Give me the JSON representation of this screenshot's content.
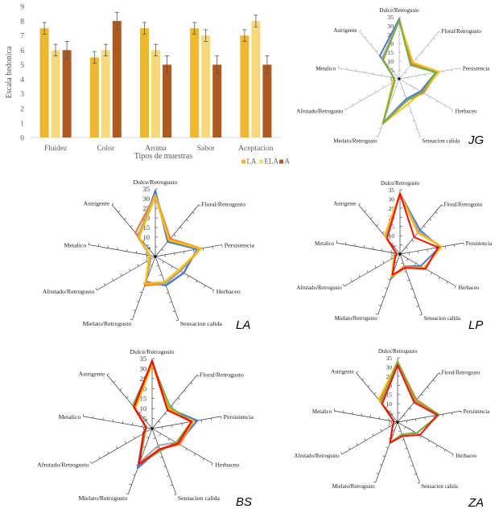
{
  "chart_data": [
    {
      "type": "bar",
      "title": "",
      "xlabel": "Tipos de muestras",
      "ylabel": "Escala hedonica",
      "ylim": [
        0,
        9
      ],
      "yticks": [
        "0",
        "1",
        "2",
        "3",
        "4",
        "5",
        "6",
        "7",
        "8",
        "9"
      ],
      "grid": false,
      "legend": "bottom-right",
      "categories": [
        "Fluidez",
        "Color",
        "Aroma",
        "Sabor",
        "Aceptacion"
      ],
      "series": [
        {
          "name": "LA",
          "color": "#EDB82F",
          "values": [
            7.5,
            5.5,
            7.5,
            7.5,
            7.0
          ],
          "error": [
            0.4,
            0.4,
            0.4,
            0.4,
            0.4
          ]
        },
        {
          "name": "ELA",
          "color": "#F6D97C",
          "values": [
            6.0,
            6.0,
            6.0,
            7.0,
            8.0
          ],
          "error": [
            0.4,
            0.4,
            0.4,
            0.4,
            0.4
          ]
        },
        {
          "name": "A",
          "color": "#AD5A22",
          "values": [
            6.0,
            8.0,
            5.0,
            5.0,
            5.0
          ],
          "error": [
            0.6,
            0.6,
            0.6,
            0.6,
            0.6
          ]
        }
      ]
    },
    {
      "type": "radar",
      "panel_label": "JG",
      "axes": [
        "Dulce/Retrogusto",
        "Floral/Retrogusto",
        "Persistencia",
        "Herbaceo",
        "Sensacion calida",
        "Mielato/Retrogusto",
        "Afrutado/Retrogusto",
        "Metalico",
        "Astrigente"
      ],
      "rlim": [
        0,
        35
      ],
      "rticks": [
        "0",
        "5",
        "10",
        "15",
        "20",
        "25",
        "30",
        "35"
      ],
      "series": [
        {
          "color": "#4472C4",
          "values": [
            34,
            11,
            21,
            14,
            12,
            26,
            4,
            3,
            17
          ]
        },
        {
          "color": "#ED7D31",
          "values": [
            33,
            11,
            22,
            16,
            13,
            26,
            4,
            3,
            15
          ]
        },
        {
          "color": "#A5A5A5",
          "values": [
            33,
            12,
            22,
            15,
            13,
            26,
            4,
            3,
            15
          ]
        },
        {
          "color": "#FFC000",
          "values": [
            33,
            12,
            23,
            15,
            15,
            27,
            4,
            3,
            14
          ]
        },
        {
          "color": "#70AD47",
          "values": [
            33,
            10,
            21,
            15,
            13,
            27,
            3,
            3,
            14
          ]
        }
      ]
    },
    {
      "type": "radar",
      "panel_label": "LA",
      "axes": [
        "Dulce/Retrogusto",
        "Floral/Retrogusto",
        "Persistencia",
        "Herbaceo",
        "Sensacion calida",
        "Mielato/Retrogusto",
        "Afrutado/Retrogusto",
        "Metalico",
        "Astrigente"
      ],
      "rlim": [
        0,
        35
      ],
      "rticks": [
        "0",
        "5",
        "10",
        "15",
        "20",
        "25",
        "30",
        "35"
      ],
      "series": [
        {
          "color": "#4472C4",
          "values": [
            34,
            10,
            22,
            17,
            16,
            14,
            3,
            3,
            13
          ]
        },
        {
          "color": "#ED7D31",
          "values": [
            32,
            12,
            24,
            15,
            15,
            16,
            3,
            3,
            16
          ]
        },
        {
          "color": "#A5A5A5",
          "values": [
            32,
            11,
            23,
            15,
            15,
            15,
            3,
            3,
            14
          ]
        },
        {
          "color": "#FFC000",
          "values": [
            31,
            11,
            24,
            14,
            14,
            15,
            4,
            3,
            13
          ]
        }
      ]
    },
    {
      "type": "radar",
      "panel_label": "LP",
      "axes": [
        "Dulce/Retrogusto",
        "Floral/Retrogusto",
        "Persistencia",
        "Herbaceo",
        "Sensacion calida",
        "Mielato/Retrogusto",
        "Afrutado/Retrogusto",
        "Metalico",
        "Astrigente"
      ],
      "rlim": [
        0,
        35
      ],
      "rticks": [
        "0",
        "5",
        "10",
        "15",
        "20",
        "25",
        "30",
        "35"
      ],
      "series": [
        {
          "color": "#4472C4",
          "values": [
            33,
            17,
            22,
            13,
            7,
            14,
            3,
            2,
            12
          ]
        },
        {
          "color": "#A5A5A5",
          "values": [
            33,
            16,
            23,
            15,
            7,
            13,
            3,
            2,
            12
          ]
        },
        {
          "color": "#ED7D31",
          "values": [
            33,
            15,
            23,
            15,
            7,
            13,
            3,
            2,
            13
          ]
        },
        {
          "color": "#FFC000",
          "values": [
            33,
            15,
            23,
            15,
            8,
            13,
            4,
            2,
            13
          ]
        },
        {
          "color": "#FF0000",
          "values": [
            33,
            12,
            21,
            16,
            8,
            12,
            3,
            2,
            11
          ]
        }
      ]
    },
    {
      "type": "radar",
      "panel_label": "BS",
      "axes": [
        "Dulce/Retrogusto",
        "Floral/Retrogusto",
        "Persistencia",
        "Herbaceo",
        "Sensacion calida",
        "Mielato/Retrogusto",
        "Afrutado/Retrogusto",
        "Metalico",
        "Astrigente"
      ],
      "rlim": [
        0,
        35
      ],
      "rticks": [
        "0",
        "5",
        "10",
        "15",
        "20",
        "25",
        "30",
        "35"
      ],
      "series": [
        {
          "color": "#4472C4",
          "values": [
            33,
            13,
            23,
            15,
            11,
            21,
            5,
            3,
            14
          ]
        },
        {
          "color": "#A5A5A5",
          "values": [
            33,
            13,
            21,
            14,
            9,
            18,
            5,
            3,
            14
          ]
        },
        {
          "color": "#ED7D31",
          "values": [
            33,
            12,
            21,
            16,
            11,
            19,
            5,
            3,
            14
          ]
        },
        {
          "color": "#FFC000",
          "values": [
            32,
            13,
            21,
            15,
            11,
            19,
            5,
            3,
            13
          ]
        },
        {
          "color": "#70AD47",
          "values": [
            33,
            14,
            20,
            14,
            12,
            19,
            4,
            3,
            15
          ]
        },
        {
          "color": "#FF0000",
          "values": [
            34,
            12,
            20,
            15,
            11,
            19,
            5,
            3,
            14
          ]
        }
      ]
    },
    {
      "type": "radar",
      "panel_label": "ZA",
      "axes": [
        "Dulce/Retrogusto",
        "Floral/Retrogusto",
        "Persistencia",
        "Herbaceo",
        "Sensacion calida",
        "Mielato/Retrogusto",
        "Afrutado/Retrogusto",
        "Metalico",
        "Astrigente"
      ],
      "rlim": [
        0,
        35
      ],
      "rticks": [
        "0",
        "5",
        "10",
        "15",
        "20",
        "25",
        "30",
        "35"
      ],
      "series": [
        {
          "color": "#ED7D31",
          "values": [
            33,
            16,
            23,
            12,
            7,
            12,
            3,
            2,
            15
          ]
        },
        {
          "color": "#FFC000",
          "values": [
            33,
            15,
            23,
            12,
            7,
            12,
            3,
            2,
            16
          ]
        },
        {
          "color": "#70AD47",
          "values": [
            33,
            15,
            23,
            12,
            7,
            12,
            3,
            2,
            14
          ]
        },
        {
          "color": "#FF0000",
          "values": [
            31,
            14,
            22,
            14,
            8,
            12,
            3,
            2,
            13
          ]
        }
      ]
    }
  ]
}
